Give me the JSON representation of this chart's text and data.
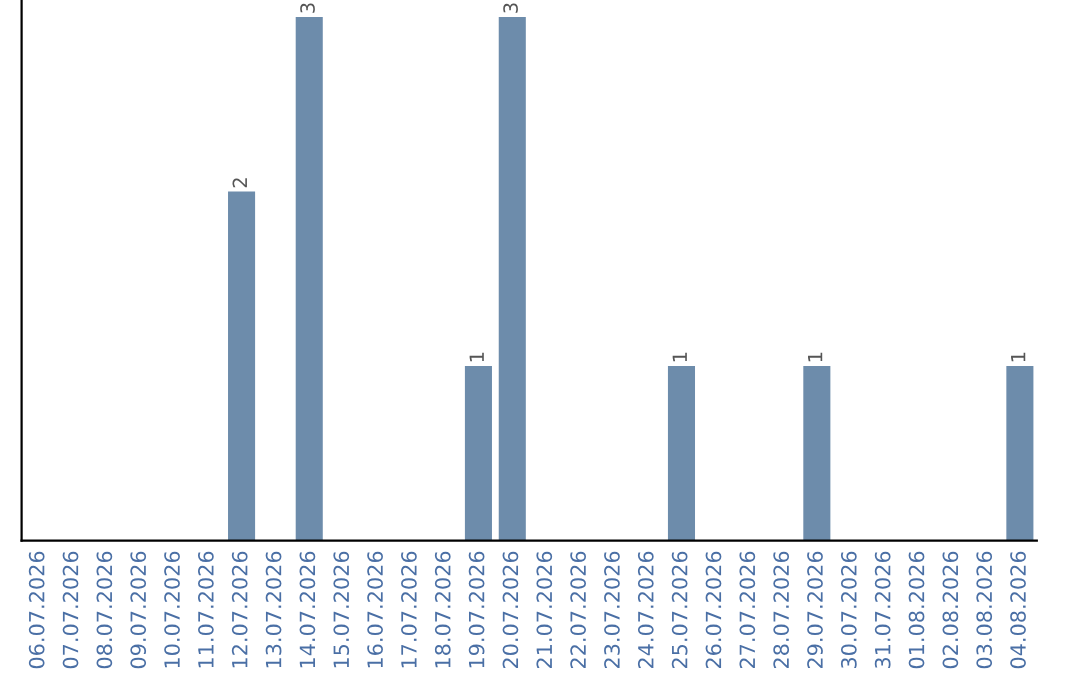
{
  "chart_data": {
    "type": "bar",
    "categories": [
      "06.07.2026",
      "07.07.2026",
      "08.07.2026",
      "09.07.2026",
      "10.07.2026",
      "11.07.2026",
      "12.07.2026",
      "13.07.2026",
      "14.07.2026",
      "15.07.2026",
      "16.07.2026",
      "17.07.2026",
      "18.07.2026",
      "19.07.2026",
      "20.07.2026",
      "21.07.2026",
      "22.07.2026",
      "23.07.2026",
      "24.07.2026",
      "25.07.2026",
      "26.07.2026",
      "27.07.2026",
      "28.07.2026",
      "29.07.2026",
      "30.07.2026",
      "31.07.2026",
      "01.08.2026",
      "02.08.2026",
      "03.08.2026",
      "04.08.2026"
    ],
    "values": [
      0,
      0,
      0,
      0,
      0,
      0,
      2,
      0,
      3,
      0,
      0,
      0,
      0,
      1,
      3,
      0,
      0,
      0,
      0,
      1,
      0,
      0,
      0,
      1,
      0,
      0,
      0,
      0,
      0,
      1
    ],
    "value_labels": [
      null,
      null,
      null,
      null,
      null,
      null,
      "2",
      null,
      "3",
      null,
      null,
      null,
      null,
      "1",
      "3",
      null,
      null,
      null,
      null,
      "1",
      null,
      null,
      null,
      "1",
      null,
      null,
      null,
      null,
      null,
      "1"
    ],
    "color": "#6d8cab",
    "ylim": [
      0,
      3.0
    ],
    "tick_labels": "x",
    "grid": false,
    "legend": false
  }
}
